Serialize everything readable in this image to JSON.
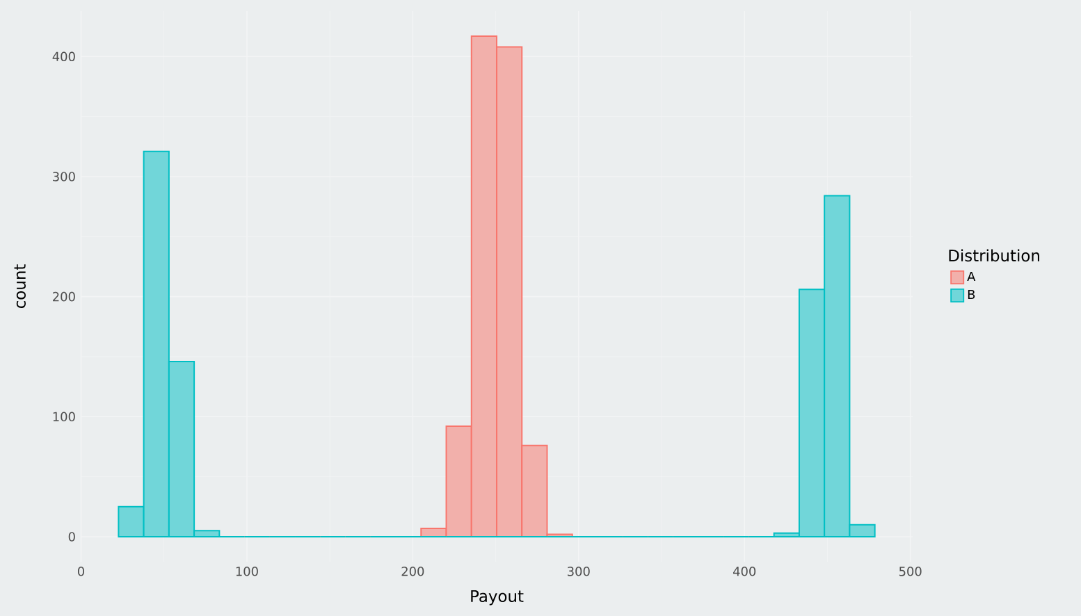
{
  "chart_data": {
    "type": "histogram",
    "xlabel": "Payout",
    "ylabel": "count",
    "legend_title": "Distribution",
    "bins": [
      22.6,
      37.8,
      53.0,
      68.2,
      83.4,
      98.6,
      113.8,
      129.0,
      144.2,
      159.4,
      174.6,
      189.8,
      205.0,
      220.2,
      235.4,
      250.6,
      265.8,
      281.0,
      296.2,
      311.4,
      326.6,
      341.8,
      357.0,
      372.2,
      387.4,
      402.6,
      417.8,
      433.0,
      448.2,
      463.4,
      478.6
    ],
    "series": [
      {
        "name": "A",
        "color": "#f8766d",
        "values": [
          0,
          0,
          0,
          0,
          0,
          0,
          0,
          0,
          0,
          0,
          0,
          0,
          7,
          92,
          417,
          408,
          76,
          2,
          0,
          0,
          0,
          0,
          0,
          0,
          0,
          0,
          0,
          0,
          0,
          0
        ]
      },
      {
        "name": "B",
        "color": "#00bfc4",
        "values": [
          25,
          321,
          146,
          5,
          0,
          0,
          0,
          0,
          0,
          0,
          0,
          0,
          0,
          0,
          0,
          0,
          0,
          0,
          0,
          0,
          0,
          0,
          0,
          0,
          0,
          0,
          3,
          206,
          284,
          10
        ]
      }
    ],
    "xlim": [
      -0.2,
      501.4
    ],
    "ylim": [
      -20.85,
      437.85
    ],
    "xticks": [
      0,
      100,
      200,
      300,
      400,
      500
    ],
    "yticks": [
      0,
      100,
      200,
      300,
      400
    ],
    "grid": true,
    "legend": "right"
  }
}
